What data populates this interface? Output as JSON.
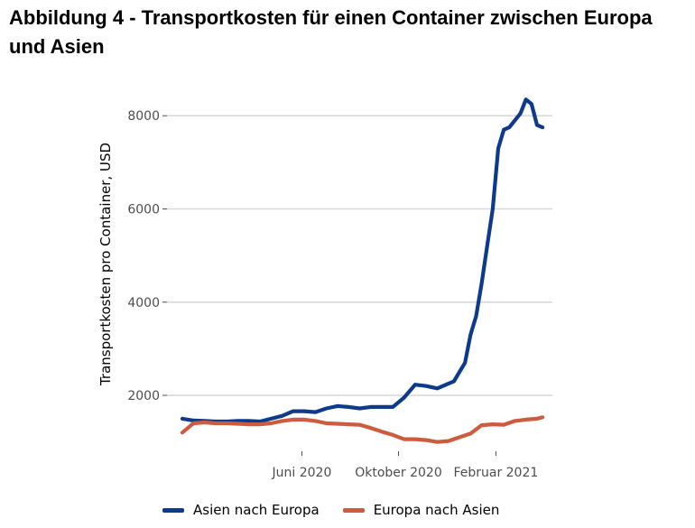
{
  "title": "Abbildung 4 - Transportkosten für einen Container zwischen Europa und Asien",
  "chart_data": {
    "type": "line",
    "title": "Abbildung 4 - Transportkosten für einen Container zwischen Europa und Asien",
    "xlabel": "",
    "ylabel": "Transportkosten pro Container, USD",
    "x_range": [
      "2020-01-02",
      "2021-03-25"
    ],
    "ylim": [
      800,
      8450
    ],
    "y_ticks": [
      2000,
      4000,
      6000,
      8000
    ],
    "y_tick_labels": [
      "2000",
      "4000",
      "6000",
      "8000"
    ],
    "x_ticks": [
      "2020-06-01",
      "2020-10-01",
      "2021-02-01"
    ],
    "x_tick_labels": [
      "Juni 2020",
      "Oktober 2020",
      "Februar 2021"
    ],
    "grid": "horizontal major lines",
    "legend_position": "bottom",
    "series": [
      {
        "name": "Asien nach Europa",
        "color": "#0d3a8a",
        "points": [
          [
            "2020-01-02",
            1500
          ],
          [
            "2020-01-16",
            1460
          ],
          [
            "2020-01-30",
            1450
          ],
          [
            "2020-02-13",
            1440
          ],
          [
            "2020-02-27",
            1440
          ],
          [
            "2020-03-12",
            1450
          ],
          [
            "2020-03-26",
            1450
          ],
          [
            "2020-04-09",
            1440
          ],
          [
            "2020-04-23",
            1500
          ],
          [
            "2020-05-07",
            1560
          ],
          [
            "2020-05-21",
            1660
          ],
          [
            "2020-06-04",
            1660
          ],
          [
            "2020-06-18",
            1640
          ],
          [
            "2020-07-02",
            1720
          ],
          [
            "2020-07-16",
            1770
          ],
          [
            "2020-07-30",
            1750
          ],
          [
            "2020-08-13",
            1720
          ],
          [
            "2020-08-27",
            1750
          ],
          [
            "2020-09-10",
            1750
          ],
          [
            "2020-09-24",
            1750
          ],
          [
            "2020-10-08",
            1950
          ],
          [
            "2020-10-22",
            2230
          ],
          [
            "2020-11-05",
            2200
          ],
          [
            "2020-11-19",
            2150
          ],
          [
            "2020-12-03",
            2250
          ],
          [
            "2020-12-10",
            2300
          ],
          [
            "2020-12-17",
            2500
          ],
          [
            "2020-12-24",
            2700
          ],
          [
            "2020-12-31",
            3300
          ],
          [
            "2021-01-07",
            3700
          ],
          [
            "2021-01-14",
            4400
          ],
          [
            "2021-01-21",
            5200
          ],
          [
            "2021-01-28",
            6000
          ],
          [
            "2021-02-04",
            7300
          ],
          [
            "2021-02-11",
            7700
          ],
          [
            "2021-02-18",
            7750
          ],
          [
            "2021-02-25",
            7900
          ],
          [
            "2021-03-04",
            8050
          ],
          [
            "2021-03-11",
            8350
          ],
          [
            "2021-03-18",
            8250
          ],
          [
            "2021-03-25",
            7800
          ],
          [
            "2021-04-01",
            7750
          ]
        ]
      },
      {
        "name": "Europa nach Asien",
        "color": "#cd5b3d",
        "points": [
          [
            "2020-01-02",
            1200
          ],
          [
            "2020-01-16",
            1400
          ],
          [
            "2020-01-30",
            1420
          ],
          [
            "2020-02-13",
            1400
          ],
          [
            "2020-02-27",
            1400
          ],
          [
            "2020-03-12",
            1390
          ],
          [
            "2020-03-26",
            1380
          ],
          [
            "2020-04-09",
            1380
          ],
          [
            "2020-04-23",
            1400
          ],
          [
            "2020-05-07",
            1450
          ],
          [
            "2020-05-21",
            1480
          ],
          [
            "2020-06-04",
            1480
          ],
          [
            "2020-06-18",
            1450
          ],
          [
            "2020-07-02",
            1400
          ],
          [
            "2020-07-16",
            1390
          ],
          [
            "2020-07-30",
            1380
          ],
          [
            "2020-08-13",
            1370
          ],
          [
            "2020-08-27",
            1300
          ],
          [
            "2020-09-10",
            1220
          ],
          [
            "2020-09-24",
            1150
          ],
          [
            "2020-10-08",
            1060
          ],
          [
            "2020-10-22",
            1060
          ],
          [
            "2020-11-05",
            1040
          ],
          [
            "2020-11-19",
            1000
          ],
          [
            "2020-12-03",
            1020
          ],
          [
            "2020-12-17",
            1100
          ],
          [
            "2020-12-31",
            1180
          ],
          [
            "2021-01-14",
            1360
          ],
          [
            "2021-01-28",
            1380
          ],
          [
            "2021-02-11",
            1370
          ],
          [
            "2021-02-25",
            1450
          ],
          [
            "2021-03-11",
            1480
          ],
          [
            "2021-03-25",
            1500
          ],
          [
            "2021-04-01",
            1530
          ]
        ]
      }
    ]
  }
}
